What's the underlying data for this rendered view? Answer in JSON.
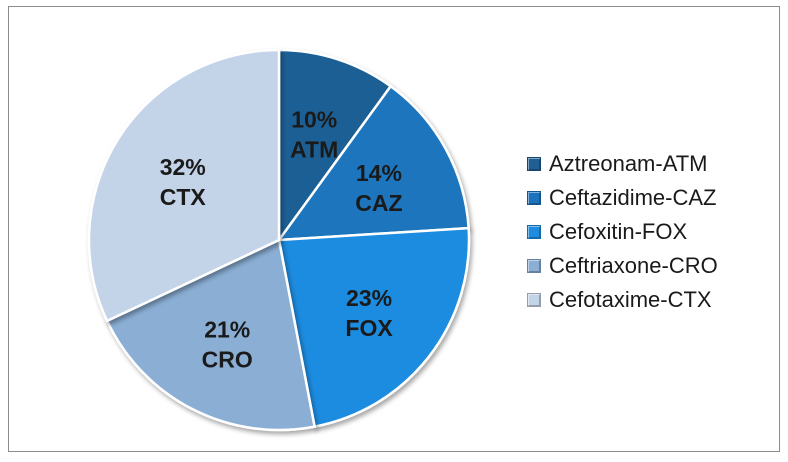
{
  "chart_data": {
    "type": "pie",
    "title": "",
    "categories": [
      "Aztreonam-ATM",
      "Ceftazidime-CAZ",
      "Cefoxitin-FOX",
      "Ceftriaxone-CRO",
      "Cefotaxime-CTX"
    ],
    "values": [
      10,
      14,
      23,
      21,
      32
    ],
    "percent_labels": [
      "10%",
      "14%",
      "23%",
      "21%",
      "32%"
    ],
    "short_labels": [
      "ATM",
      "CAZ",
      "FOX",
      "CRO",
      "CTX"
    ],
    "colors": [
      "#1f5f94",
      "#1d74bd",
      "#1f8ce0",
      "#8aaed4",
      "#c3d3e8"
    ],
    "legend_position": "right"
  }
}
